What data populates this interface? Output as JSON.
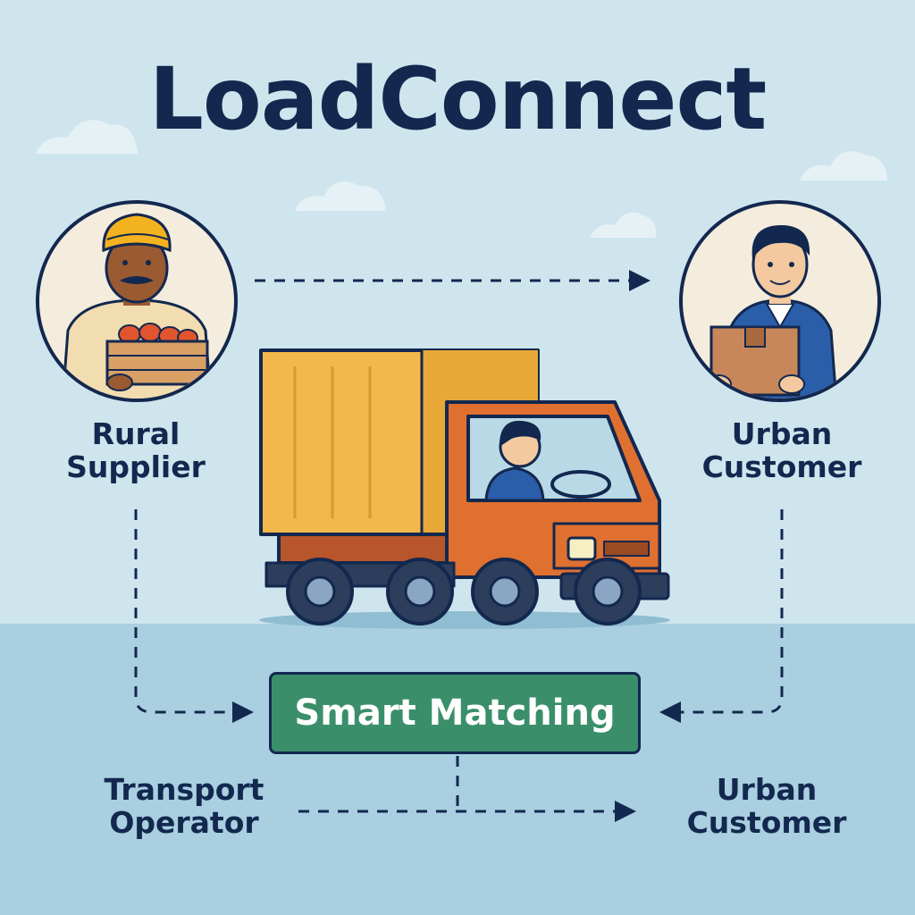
{
  "title": "LoadConnect",
  "nodes": {
    "rural_supplier": "Rural Supplier",
    "urban_customer_top": "Urban Customer",
    "transport_operator": "Transport Operator",
    "urban_customer_bottom": "Urban Customer",
    "smart_matching": "Smart Matching"
  },
  "colors": {
    "navy": "#13284f",
    "sky": "#cfe5ee",
    "ground": "#a9cfe0",
    "matching_green": "#3a8f6a",
    "truck_cargo": "#f2b84b",
    "truck_cab": "#e07030",
    "turban": "#f3b21f"
  },
  "icons": [
    "supplier-avatar-icon",
    "customer-avatar-icon",
    "truck-icon",
    "cloud-icon",
    "arrow-icon"
  ]
}
